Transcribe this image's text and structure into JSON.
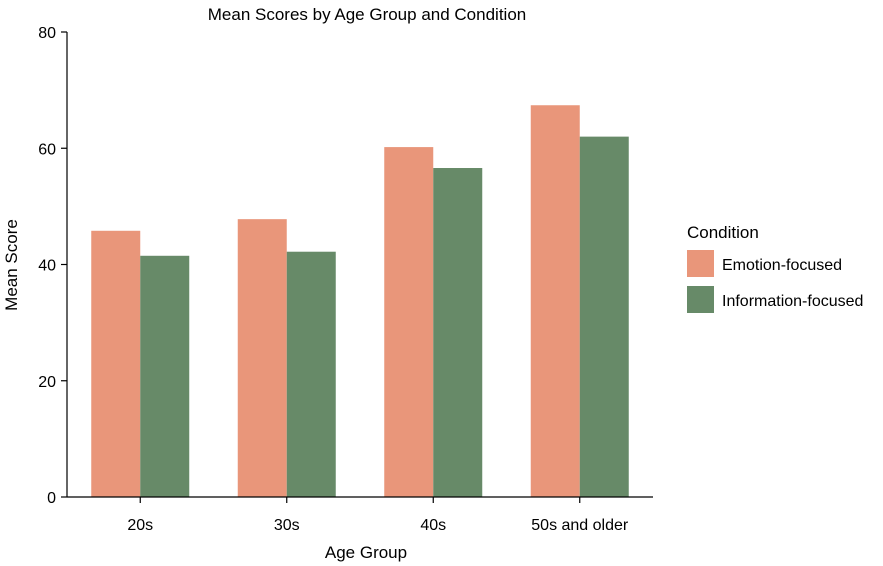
{
  "chart_data": {
    "type": "bar",
    "title": "Mean Scores by Age Group and Condition",
    "xlabel": "Age Group",
    "ylabel": "Mean Score",
    "ylim": [
      0,
      80
    ],
    "yticks": [
      "0",
      "20",
      "40",
      "60",
      "80"
    ],
    "categories": [
      "20s",
      "30s",
      "40s",
      "50s and older"
    ],
    "series": [
      {
        "name": "Emotion-focused",
        "color": "#E9967A",
        "values": [
          45.8,
          47.8,
          60.2,
          67.4
        ]
      },
      {
        "name": "Information-focused",
        "color": "#678A68",
        "values": [
          41.5,
          42.2,
          56.6,
          62.0
        ]
      }
    ],
    "legend": {
      "title": "Condition",
      "position": "right"
    },
    "grid": false
  }
}
